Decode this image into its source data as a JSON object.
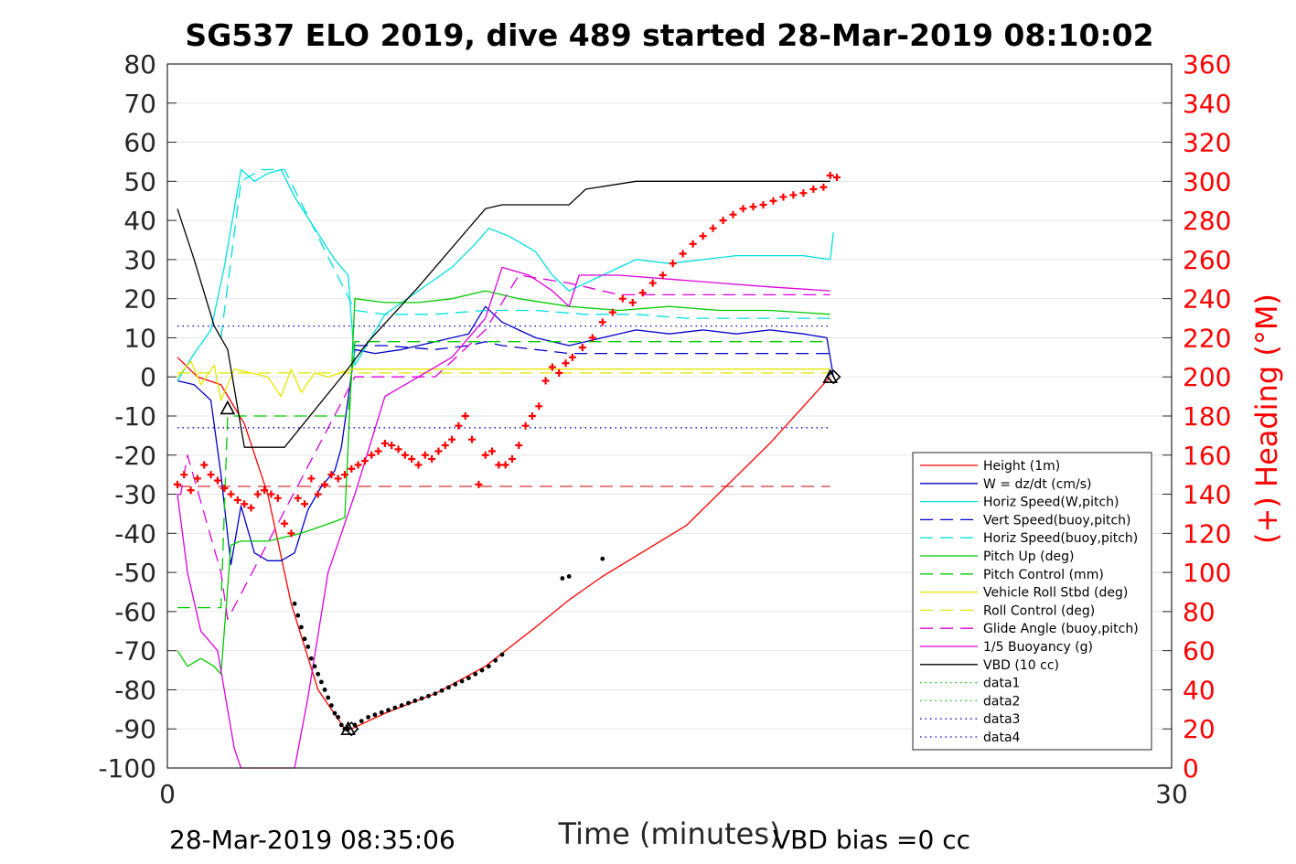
{
  "chart_data": {
    "type": "line",
    "title": "SG537 ELO 2019, dive 489 started 28-Mar-2019 08:10:02",
    "xlabel": "Time (minutes)",
    "ylabel_right": "(+) Heading (°M)",
    "xlim": [
      0,
      30
    ],
    "ylim": [
      -100,
      80
    ],
    "ylim_right": [
      0,
      360
    ],
    "x_ticks": [
      "0",
      "30"
    ],
    "y_ticks": [
      "80",
      "70",
      "60",
      "50",
      "40",
      "30",
      "20",
      "10",
      "0",
      "-10",
      "-20",
      "-30",
      "-40",
      "-50",
      "-60",
      "-70",
      "-80",
      "-90",
      "-100"
    ],
    "y_right_ticks": [
      "360",
      "340",
      "320",
      "300",
      "280",
      "260",
      "240",
      "220",
      "200",
      "180",
      "160",
      "140",
      "120",
      "100",
      "80",
      "60",
      "40",
      "20",
      "0"
    ],
    "grid": "horizontal",
    "legend_position": "lower-right",
    "footer_left": "28-Mar-2019 08:35:06",
    "footer_right": "VBD bias =0 cc",
    "series": [
      {
        "name": "Height (1m)",
        "color": "#ff0000",
        "style": "solid",
        "x": [
          0.3,
          0.9,
          1.6,
          2.3,
          3.0,
          3.7,
          4.5,
          5.3,
          5.5
        ],
        "y": [
          5,
          0,
          -2,
          -12,
          -30,
          -58,
          -80,
          -90,
          -90
        ]
      },
      {
        "name": "W = dz/dt (cm/s)",
        "color": "#0000cc",
        "style": "solid",
        "x": [
          0.3,
          0.8,
          1.3,
          1.6,
          1.9,
          2.2,
          2.6,
          3.0,
          3.4,
          3.8,
          4.2,
          4.6,
          5.0,
          5.2,
          5.6,
          6.2,
          7.0,
          8.0,
          9.0,
          9.5,
          10.0,
          10.5,
          11.0,
          12.0,
          13.0,
          14.0,
          15.0,
          16.0,
          17.0,
          18.0,
          19.0,
          19.7,
          19.9
        ],
        "y": [
          -1,
          -2,
          -6,
          -25,
          -48,
          -33,
          -45,
          -47,
          -47,
          -45,
          -34,
          -28,
          -24,
          -18,
          7,
          6,
          7,
          9,
          11,
          18,
          14,
          12,
          10,
          8,
          10,
          12,
          11,
          12,
          11,
          12,
          11,
          10,
          0
        ]
      },
      {
        "name": "Horiz Speed(W,pitch)",
        "color": "#00e0e0",
        "style": "solid",
        "x": [
          0.3,
          0.8,
          1.3,
          1.7,
          2.2,
          2.6,
          3.0,
          3.4,
          3.8,
          4.4,
          5.0,
          5.4,
          5.6,
          6.5,
          7.5,
          8.5,
          9.2,
          9.6,
          10.2,
          11.0,
          11.5,
          12.0,
          12.5,
          13.0,
          14.0,
          15.0,
          16.0,
          17.0,
          18.0,
          19.0,
          19.8,
          19.9
        ],
        "y": [
          -1,
          6,
          12,
          28,
          53,
          50,
          52,
          53,
          46,
          38,
          30,
          26,
          3,
          16,
          22,
          28,
          34,
          38,
          36,
          32,
          26,
          22,
          24,
          26,
          30,
          29,
          30,
          31,
          31,
          31,
          30,
          37
        ]
      },
      {
        "name": "Vert Speed(buoy,pitch)",
        "color": "#0000cc",
        "style": "dash",
        "x": [
          5.6,
          6.5,
          8.0,
          9.0,
          9.5,
          10.0,
          11.0,
          12.0,
          13.0,
          14.0,
          15.0,
          16.0,
          17.0,
          18.0,
          19.0,
          19.8
        ],
        "y": [
          8,
          8,
          7,
          8,
          9,
          8,
          7,
          6,
          6,
          6,
          6,
          6,
          6,
          6,
          6,
          6
        ]
      },
      {
        "name": "Horiz Speed(buoy,pitch)",
        "color": "#00e0e0",
        "style": "dash",
        "x": [
          1.6,
          2.2,
          2.8,
          3.5,
          5.6,
          6.5,
          8.0,
          9.5,
          11.0,
          12.5,
          14.0,
          15.5,
          17.0,
          18.5,
          19.8
        ],
        "y": [
          10,
          50,
          53,
          53,
          17,
          16,
          16,
          17,
          17,
          16,
          16,
          15,
          15,
          15,
          15
        ]
      },
      {
        "name": "Pitch Up (deg)",
        "color": "#00cc00",
        "style": "solid",
        "x": [
          0.3,
          0.6,
          1.0,
          1.4,
          1.6,
          1.9,
          2.2,
          3.0,
          4.0,
          5.0,
          5.3,
          5.6,
          6.5,
          7.5,
          8.5,
          9.5,
          10.5,
          12.0,
          13.5,
          15.0,
          16.5,
          18.0,
          19.8
        ],
        "y": [
          -70,
          -74,
          -72,
          -74,
          -76,
          -43,
          -42,
          -42,
          -40,
          -37,
          -36,
          20,
          19,
          19,
          20,
          22,
          20,
          18,
          17,
          18,
          17,
          17,
          16
        ]
      },
      {
        "name": "Pitch Control (mm)",
        "color": "#00cc00",
        "style": "dash",
        "x": [
          0.3,
          1.6,
          1.8,
          3.5,
          5.4,
          5.6,
          10.0,
          14.0,
          19.8
        ],
        "y": [
          -59,
          -59,
          -10,
          -10,
          -10,
          9,
          9,
          9,
          9
        ]
      },
      {
        "name": "Vehicle Roll Stbd (deg)",
        "color": "#e6e600",
        "style": "solid",
        "x": [
          0.3,
          0.7,
          1.0,
          1.4,
          1.6,
          2.0,
          2.5,
          3.0,
          3.4,
          3.7,
          4.0,
          4.4,
          4.8,
          5.5,
          7.0,
          9.0,
          11.0,
          13.0,
          15.0,
          17.0,
          19.8
        ],
        "y": [
          0,
          4,
          -2,
          3,
          -6,
          2,
          1,
          0,
          -5,
          2,
          -4,
          1,
          0,
          2,
          2,
          2,
          2,
          2,
          2,
          2,
          2
        ]
      },
      {
        "name": "Roll Control (deg)",
        "color": "#e6e600",
        "style": "dash",
        "x": [
          0.3,
          19.8
        ],
        "y": [
          1,
          1
        ]
      },
      {
        "name": "Glide Angle (buoy,pitch)",
        "color": "#dd00dd",
        "style": "dash",
        "x": [
          0.3,
          0.4,
          0.6,
          1.6,
          1.8,
          5.6,
          7.5,
          8.0,
          9.5,
          10.5,
          12.0,
          13.5,
          15.0,
          17.0,
          19.8
        ],
        "y": [
          -30,
          -30,
          -20,
          -50,
          -62,
          0,
          0,
          0,
          12,
          26,
          24,
          21,
          21,
          21,
          21
        ]
      },
      {
        "name": "1/5 Buoyancy (g)",
        "color": "#dd00dd",
        "style": "solid",
        "x": [
          0.3,
          0.6,
          1.0,
          1.5,
          2.0,
          2.2,
          3.8,
          4.2,
          4.8,
          5.2,
          5.6,
          6.5,
          7.5,
          8.5,
          9.5,
          10.0,
          10.8,
          11.5,
          12.0,
          12.3,
          13.5,
          15.0,
          16.5,
          18.0,
          19.8
        ],
        "y": [
          -30,
          -50,
          -65,
          -70,
          -95,
          -100,
          -100,
          -82,
          -50,
          -40,
          -30,
          -5,
          0,
          5,
          15,
          28,
          26,
          22,
          18,
          26,
          26,
          25,
          24,
          23,
          22
        ]
      },
      {
        "name": "VBD (10 cc)",
        "color": "#000000",
        "style": "solid",
        "x": [
          0.3,
          0.8,
          1.4,
          1.8,
          2.3,
          3.5,
          5.3,
          6.0,
          7.5,
          9.5,
          10.0,
          11.5,
          12.0,
          12.5,
          14.0,
          16.0,
          19.8
        ],
        "y": [
          43,
          30,
          13,
          7,
          -18,
          -18,
          1,
          9,
          23,
          43,
          44,
          44,
          44,
          48,
          50,
          50,
          50
        ]
      },
      {
        "name": "data1",
        "color": "#00cc00",
        "style": "dot",
        "x": [],
        "y": []
      },
      {
        "name": "data2",
        "color": "#00cc00",
        "style": "dot",
        "x": [],
        "y": []
      },
      {
        "name": "data3",
        "color": "#0000cc",
        "style": "dot",
        "x": [
          0.3,
          19.8
        ],
        "y": [
          13,
          13
        ]
      },
      {
        "name": "data4",
        "color": "#0000cc",
        "style": "dot",
        "x": [
          0.3,
          19.8
        ],
        "y": [
          -13,
          -13
        ]
      }
    ],
    "extra_lines": [
      {
        "color": "#cc0000",
        "style": "dash",
        "x": [
          0.3,
          19.8
        ],
        "y": [
          -28,
          -28
        ]
      }
    ],
    "height_ascent": {
      "color": "#ff0000",
      "x": [
        5.5,
        6.5,
        8.0,
        9.5,
        11.0,
        12.0,
        13.0,
        15.5,
        18.0,
        19.8
      ],
      "y": [
        -90,
        -86,
        -81,
        -74,
        -64,
        -57,
        -51,
        -38,
        -17,
        0
      ]
    },
    "depth_dots_descent": {
      "x": [
        3.8,
        3.9,
        4.0,
        4.1,
        4.2,
        4.3,
        4.4,
        4.5,
        4.6,
        4.7,
        4.8,
        4.9,
        5.0,
        5.1,
        5.2,
        5.3
      ],
      "y": [
        -58,
        -61,
        -64,
        -67,
        -69,
        -72,
        -74,
        -76,
        -78,
        -80,
        -82,
        -84,
        -86,
        -87,
        -89,
        -90
      ]
    },
    "depth_dots_ascent": {
      "x": [
        5.4,
        5.6,
        5.8,
        6.0,
        6.2,
        6.4,
        6.6,
        6.8,
        7.0,
        7.2,
        7.4,
        7.6,
        7.8,
        8.0,
        8.2,
        8.4,
        8.6,
        8.8,
        9.0,
        9.2,
        9.4,
        9.6,
        9.8,
        10.0,
        11.8,
        12.0,
        13.0
      ],
      "y": [
        -90,
        -89,
        -88,
        -87,
        -86.4,
        -85.8,
        -85.2,
        -84.6,
        -84,
        -83.4,
        -82.8,
        -82.2,
        -81.6,
        -81,
        -80.2,
        -79.4,
        -78.6,
        -77.8,
        -77,
        -76,
        -75,
        -74,
        -72.5,
        -71,
        -51.5,
        -51,
        -46.5
      ]
    },
    "markers_triangle": {
      "x": [
        1.8,
        5.4,
        19.8
      ],
      "y": [
        -8,
        -90,
        0
      ]
    },
    "markers_diamond": {
      "x": [
        5.5,
        19.9
      ],
      "y": [
        -90,
        0
      ]
    },
    "heading_series": {
      "name": "Heading",
      "color": "#ff0000",
      "axis": "right",
      "x": [
        0.3,
        0.5,
        0.7,
        0.9,
        1.1,
        1.3,
        1.5,
        1.7,
        1.9,
        2.1,
        2.3,
        2.5,
        2.7,
        2.9,
        3.1,
        3.3,
        3.5,
        3.7,
        3.9,
        4.1,
        4.3,
        4.5,
        4.7,
        4.9,
        5.1,
        5.3,
        5.5,
        5.7,
        5.9,
        6.1,
        6.3,
        6.5,
        6.7,
        6.9,
        7.1,
        7.3,
        7.5,
        7.7,
        7.9,
        8.1,
        8.3,
        8.5,
        8.7,
        8.9,
        9.1,
        9.3,
        9.5,
        9.7,
        9.9,
        10.1,
        10.3,
        10.5,
        10.7,
        10.9,
        11.1,
        11.3,
        11.5,
        11.7,
        11.9,
        12.1,
        12.4,
        12.7,
        13.0,
        13.3,
        13.6,
        13.9,
        14.2,
        14.5,
        14.8,
        15.1,
        15.4,
        15.7,
        16.0,
        16.3,
        16.6,
        16.9,
        17.2,
        17.5,
        17.8,
        18.1,
        18.4,
        18.7,
        19.0,
        19.3,
        19.6,
        19.8,
        20.0
      ],
      "y": [
        145,
        150,
        142,
        148,
        155,
        150,
        147,
        143,
        140,
        137,
        135,
        133,
        140,
        142,
        140,
        138,
        125,
        120,
        138,
        135,
        148,
        140,
        145,
        150,
        148,
        150,
        153,
        155,
        157,
        160,
        162,
        166,
        165,
        163,
        160,
        158,
        155,
        160,
        158,
        162,
        165,
        168,
        175,
        180,
        168,
        145,
        160,
        162,
        155,
        155,
        158,
        165,
        175,
        180,
        185,
        198,
        205,
        202,
        207,
        210,
        215,
        220,
        228,
        233,
        240,
        238,
        243,
        248,
        252,
        258,
        263,
        268,
        272,
        276,
        280,
        283,
        286,
        287,
        288,
        290,
        292,
        293,
        294,
        296,
        297,
        303,
        302
      ]
    }
  }
}
